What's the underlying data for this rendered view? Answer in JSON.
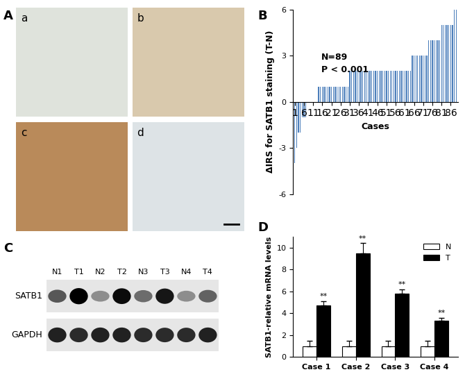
{
  "figure_labels": [
    "A",
    "B",
    "C",
    "D"
  ],
  "ihc_panel": {
    "labels": [
      "a",
      "b",
      "c",
      "d"
    ]
  },
  "western_blot": {
    "lanes": [
      "N1",
      "T1",
      "N2",
      "T2",
      "N3",
      "T3",
      "N4",
      "T4"
    ],
    "rows": [
      {
        "name": "SATB1",
        "band_intensity": [
          0.6,
          1.0,
          0.35,
          0.95,
          0.5,
          0.9,
          0.35,
          0.55
        ]
      },
      {
        "name": "GAPDH",
        "band_intensity": [
          0.85,
          0.8,
          0.85,
          0.85,
          0.8,
          0.8,
          0.8,
          0.85
        ]
      }
    ]
  },
  "chart_data": [
    {
      "type": "bar",
      "x": [
        1,
        2,
        3,
        4,
        5,
        6,
        7,
        8,
        9,
        10,
        11,
        12,
        13,
        14,
        15,
        16,
        17,
        18,
        19,
        20,
        21,
        22,
        23,
        24,
        25,
        26,
        27,
        28,
        29,
        30,
        31,
        32,
        33,
        34,
        35,
        36,
        37,
        38,
        39,
        40,
        41,
        42,
        43,
        44,
        45,
        46,
        47,
        48,
        49,
        50,
        51,
        52,
        53,
        54,
        55,
        56,
        57,
        58,
        59,
        60,
        61,
        62,
        63,
        64,
        65,
        66,
        67,
        68,
        69,
        70,
        71,
        72,
        73,
        74,
        75,
        76,
        77,
        78,
        79,
        80,
        81,
        82,
        83,
        84,
        85,
        86,
        87,
        88,
        89
      ],
      "values": [
        -4,
        -3,
        -2,
        -2,
        -1,
        -1,
        -1,
        0,
        0,
        0,
        0,
        0,
        0,
        1,
        1,
        1,
        1,
        1,
        1,
        1,
        1,
        1,
        1,
        1,
        1,
        1,
        1,
        1,
        1,
        1,
        2,
        2,
        2,
        2,
        2,
        2,
        2,
        2,
        2,
        2,
        2,
        2,
        2,
        2,
        2,
        2,
        2,
        2,
        2,
        2,
        2,
        2,
        2,
        2,
        2,
        2,
        2,
        2,
        2,
        2,
        2,
        2,
        2,
        2,
        3,
        3,
        3,
        3,
        3,
        3,
        3,
        3,
        3,
        4,
        4,
        4,
        4,
        4,
        4,
        4,
        5,
        5,
        5,
        5,
        5,
        5,
        5,
        6,
        6
      ],
      "color": "#4a7dba",
      "xlim": [
        0,
        90
      ],
      "xticks": [
        1,
        6,
        11,
        16,
        21,
        26,
        31,
        36,
        41,
        46,
        51,
        56,
        61,
        66,
        71,
        76,
        81,
        86
      ],
      "ylim": [
        -6,
        6
      ],
      "yticks": [
        -6,
        -3,
        0,
        3,
        6
      ],
      "x_label": "Cases",
      "y_label": "ΔIRS for SATB1 staining (T-N)",
      "annotations": [
        "N=89",
        "P < 0.001"
      ]
    },
    {
      "type": "bar",
      "categories": [
        "Case 1",
        "Case 2",
        "Case 3",
        "Case 4"
      ],
      "series": [
        {
          "name": "N",
          "color": "#ffffff",
          "values": [
            1,
            1,
            1,
            1
          ],
          "errors": [
            0.5,
            0.5,
            0.5,
            0.5
          ]
        },
        {
          "name": "T",
          "color": "#000000",
          "values": [
            4.7,
            9.5,
            5.8,
            3.3
          ],
          "errors": [
            0.4,
            0.9,
            0.4,
            0.3
          ]
        }
      ],
      "ylim": [
        0,
        11
      ],
      "yticks": [
        0,
        2,
        4,
        6,
        8,
        10
      ],
      "y_label": "SATB1-relative mRNA levels",
      "legend": "upper right",
      "annotations": [
        "**",
        "**",
        "**",
        "**"
      ]
    }
  ]
}
